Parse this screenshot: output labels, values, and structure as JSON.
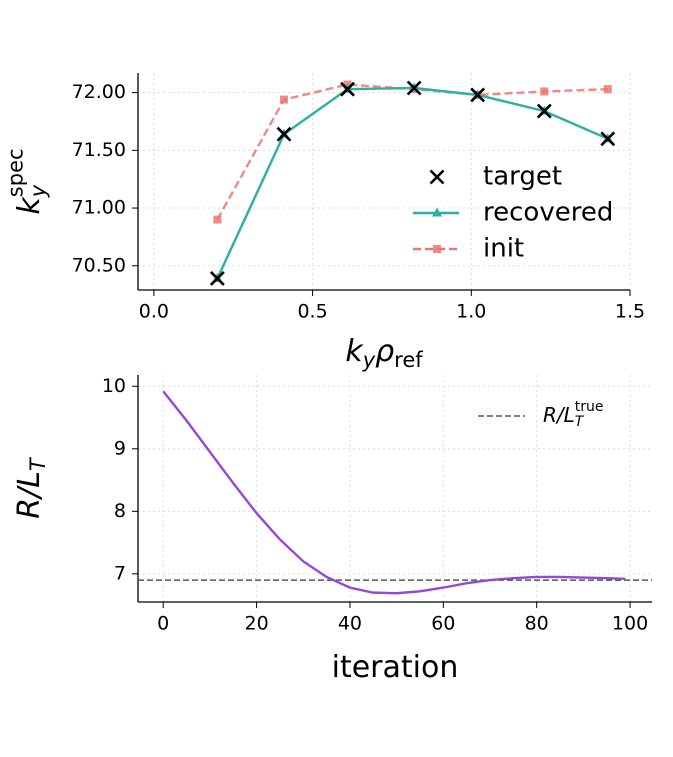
{
  "chart_data": [
    {
      "type": "line",
      "xlabel": [
        {
          "text": "k",
          "sub": "y"
        },
        {
          "text": "ρ",
          "sub": "ref"
        }
      ],
      "ylabel": [
        {
          "text": "k",
          "sub": "y",
          "sup": "spec"
        }
      ],
      "x": [
        0.2,
        0.41,
        0.61,
        0.82,
        1.02,
        1.23,
        1.43
      ],
      "series": [
        {
          "name": "init",
          "color": "#ec7570",
          "linestyle": "dashed",
          "marker": "s",
          "values": [
            70.9,
            71.94,
            72.07,
            72.03,
            71.98,
            72.01,
            72.03
          ]
        },
        {
          "name": "recovered",
          "color": "#2bb0a2",
          "linestyle": "solid",
          "marker": "^",
          "values": [
            70.39,
            71.64,
            72.03,
            72.04,
            71.98,
            71.84,
            71.6
          ]
        },
        {
          "name": "target",
          "color": "#000000",
          "linestyle": "none",
          "marker": "x",
          "values": [
            70.39,
            71.64,
            72.03,
            72.04,
            71.98,
            71.84,
            71.6
          ]
        }
      ],
      "xlim": [
        -0.05,
        1.5
      ],
      "xticks": [
        {
          "value": 0,
          "label": "0.0"
        },
        0.5,
        {
          "value": 1,
          "label": "1.0"
        },
        1.5
      ],
      "ylim": [
        70.29,
        72.17
      ],
      "yticks": [
        {
          "value": 70.5,
          "label": "70.50"
        },
        {
          "value": 71,
          "label": "71.00"
        },
        {
          "value": 71.5,
          "label": "71.50"
        },
        {
          "value": 72,
          "label": "72.00"
        }
      ],
      "grid": true,
      "legend": "center right"
    },
    {
      "type": "line",
      "xlabel": [
        {
          "text": "iteration"
        }
      ],
      "ylabel": [
        {
          "text": "R/L",
          "sub": "T"
        }
      ],
      "x": [
        0,
        5,
        10,
        15,
        20,
        25,
        30,
        35,
        40,
        45,
        50,
        55,
        60,
        65,
        70,
        75,
        80,
        85,
        90,
        95,
        99
      ],
      "series": [
        {
          "color": "#9448d8",
          "linestyle": "solid",
          "values": [
            9.92,
            9.45,
            8.95,
            8.45,
            7.97,
            7.55,
            7.2,
            6.95,
            6.78,
            6.7,
            6.69,
            6.72,
            6.78,
            6.85,
            6.9,
            6.93,
            6.95,
            6.95,
            6.94,
            6.93,
            6.92
          ]
        }
      ],
      "hline": {
        "value": 6.9,
        "color": "#555555",
        "linestyle": "dashed",
        "label": [
          {
            "text": "R/L",
            "sub": "T",
            "sup": "true"
          }
        ]
      },
      "xlim": [
        -5.4,
        104.7
      ],
      "xticks": [
        0,
        20,
        40,
        60,
        80,
        100
      ],
      "ylim": [
        6.55,
        10.18
      ],
      "yticks": [
        7,
        8,
        9,
        10
      ],
      "grid": true,
      "legend": "upper right"
    }
  ]
}
